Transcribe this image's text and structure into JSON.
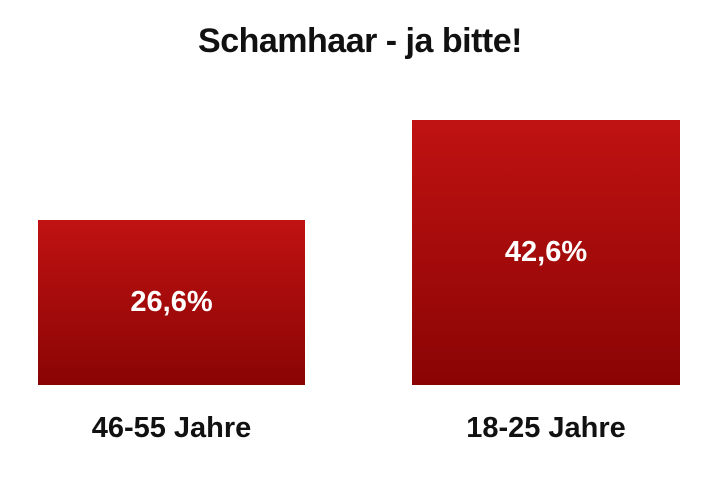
{
  "title": "Schamhaar - ja bitte!",
  "chart_data": {
    "type": "bar",
    "title": "Schamhaar - ja bitte!",
    "categories": [
      "46-55 Jahre",
      "18-25 Jahre"
    ],
    "values": [
      26.6,
      42.6
    ],
    "value_labels": [
      "26,6%",
      "42,6%"
    ],
    "xlabel": "",
    "ylabel": "",
    "ylim": [
      0,
      42.6
    ],
    "grid": false,
    "legend": "none",
    "bar_color_top": "#c01212",
    "bar_color_bottom": "#8a0404",
    "background": "#ffffff",
    "label_color": "#111111",
    "value_label_color": "#ffffff"
  }
}
